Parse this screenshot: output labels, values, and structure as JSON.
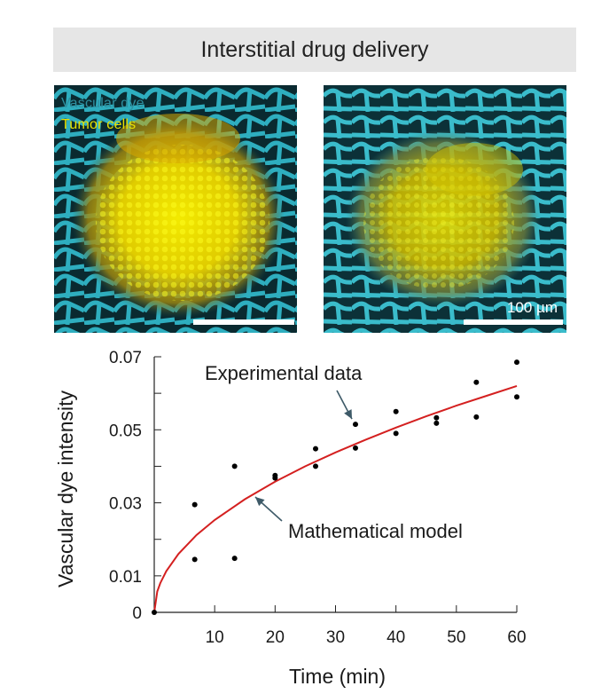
{
  "header": {
    "title": "Interstitial drug delivery"
  },
  "micrographs": {
    "legend": {
      "vascular": "Vascular dye",
      "tumor": "Tumor cells"
    },
    "scale_label": "100 µm",
    "colors": {
      "vascular": "#35c6d8",
      "tumor": "#f0e600",
      "background": "#0a2a30"
    }
  },
  "chart_data": {
    "type": "scatter",
    "xlabel": "Time (min)",
    "ylabel": "Vascular dye intensity",
    "xlim": [
      0,
      60
    ],
    "ylim": [
      0,
      0.07
    ],
    "xticks": [
      10,
      20,
      30,
      40,
      50,
      60
    ],
    "yticks": [
      {
        "value": 0,
        "label": "0"
      },
      {
        "value": 0.01,
        "label": "0.01"
      },
      {
        "value": 0.03,
        "label": "0.03"
      },
      {
        "value": 0.05,
        "label": "0.05"
      },
      {
        "value": 0.07,
        "label": "0.07"
      }
    ],
    "grid": false,
    "points": {
      "x": [
        0,
        6.7,
        6.7,
        13.3,
        13.3,
        20,
        20,
        26.7,
        26.7,
        33.3,
        33.3,
        40,
        40,
        46.7,
        46.7,
        53.3,
        53.3,
        60,
        60
      ],
      "y": [
        0,
        0.0295,
        0.0145,
        0.04,
        0.0148,
        0.0375,
        0.0368,
        0.0448,
        0.04,
        0.0515,
        0.045,
        0.055,
        0.049,
        0.0533,
        0.0518,
        0.063,
        0.0535,
        0.0685,
        0.059
      ]
    },
    "model_curve": {
      "x": [
        0,
        0.5,
        1,
        2,
        4,
        7,
        10,
        15,
        20,
        25,
        30,
        35,
        40,
        45,
        50,
        55,
        60
      ],
      "y": [
        0,
        0.0057,
        0.008,
        0.0113,
        0.016,
        0.0212,
        0.0253,
        0.031,
        0.0358,
        0.04,
        0.0438,
        0.0473,
        0.0506,
        0.0537,
        0.0566,
        0.0593,
        0.062
      ]
    },
    "annotations": {
      "experimental": "Experimental data",
      "model": "Mathematical model"
    },
    "colors": {
      "model": "#d42020",
      "points": "#000000",
      "arrow": "#3e5a68"
    }
  }
}
